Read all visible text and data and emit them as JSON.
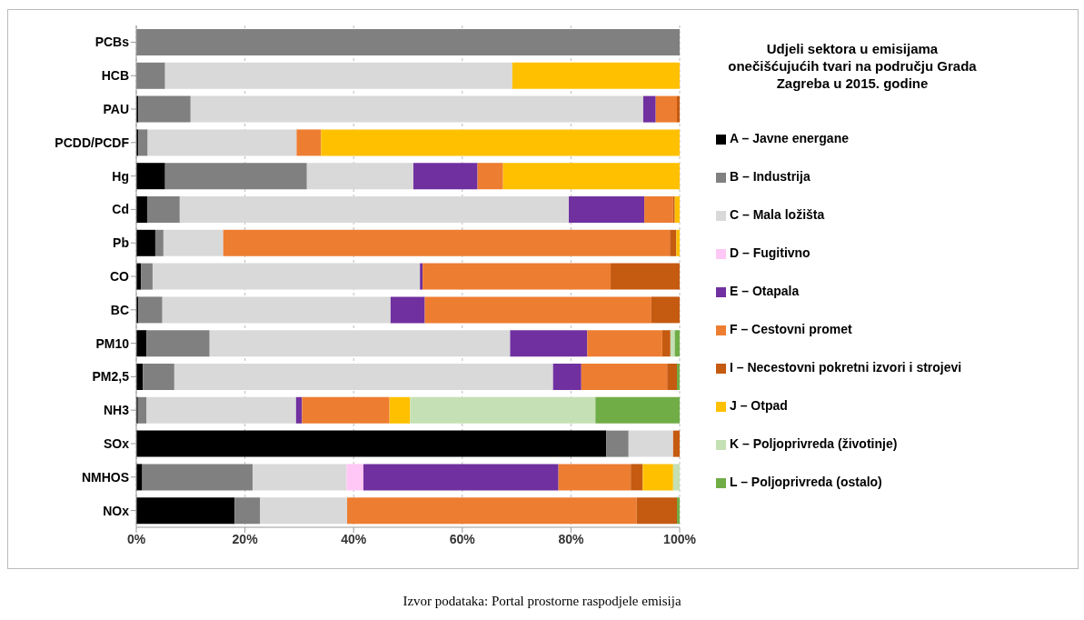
{
  "chart_data": {
    "type": "bar",
    "orientation": "horizontal",
    "stacked": true,
    "title": "Udjeli  sektora u emisijama onečišćujućih tvari na području Grada Zagreba u 2015.  godine",
    "categories": [
      "PCBs",
      "HCB",
      "PAU",
      "PCDD/PCDF",
      "Hg",
      "Cd",
      "Pb",
      "CO",
      "BC",
      "PM10",
      "PM2,5",
      "NH3",
      "SOx",
      "NMHOS",
      "NOx"
    ],
    "series": [
      {
        "name": "A – Javne energane",
        "color": "#000000",
        "values": [
          0,
          0,
          0.4,
          0.4,
          5.3,
          2.0,
          3.5,
          0.9,
          0.4,
          1.9,
          1.2,
          0.3,
          86.5,
          1.1,
          18.1
        ]
      },
      {
        "name": "B – Industrija",
        "color": "#808080",
        "values": [
          100,
          5.3,
          9.6,
          1.7,
          26.1,
          6.0,
          1.5,
          2.1,
          4.4,
          11.6,
          5.8,
          1.6,
          4.1,
          20.3,
          4.7
        ]
      },
      {
        "name": "C – Mala ložišta",
        "color": "#d9d9d9",
        "values": [
          0,
          63.9,
          83.3,
          27.4,
          19.6,
          71.6,
          11.0,
          49.2,
          42.0,
          55.3,
          69.7,
          27.5,
          8.2,
          17.3,
          16.0
        ]
      },
      {
        "name": "D – Fugitivno",
        "color": "#ffc7f5",
        "values": [
          0,
          0,
          0,
          0,
          0,
          0,
          0,
          0,
          0,
          0,
          0,
          0,
          0,
          3.1,
          0
        ]
      },
      {
        "name": "E – Otapala",
        "color": "#7030a0",
        "values": [
          0,
          0,
          2.3,
          0,
          11.8,
          13.9,
          0,
          0.5,
          6.3,
          14.2,
          5.2,
          1.1,
          0,
          35.9,
          0
        ]
      },
      {
        "name": "F – Cestovni promet",
        "color": "#ed7d31",
        "values": [
          0,
          0,
          3.9,
          4.5,
          4.7,
          5.3,
          82.2,
          34.6,
          41.7,
          13.8,
          15.8,
          16.1,
          0,
          13.3,
          53.3
        ]
      },
      {
        "name": "I – Necestovni pokretni izvori i strojevi",
        "color": "#c55a11",
        "values": [
          0,
          0,
          0.5,
          0,
          0,
          0.3,
          1.2,
          12.7,
          5.2,
          1.5,
          1.8,
          0,
          1.2,
          2.2,
          7.4
        ]
      },
      {
        "name": "J – Otpad",
        "color": "#ffc000",
        "values": [
          0,
          30.8,
          0,
          66.0,
          32.5,
          0.9,
          0.6,
          0,
          0,
          0,
          0,
          3.8,
          0,
          5.6,
          0
        ]
      },
      {
        "name": "K – Poljoprivreda (životinje)",
        "color": "#c5e0b4",
        "values": [
          0,
          0,
          0,
          0,
          0,
          0,
          0,
          0,
          0,
          0.8,
          0,
          34.1,
          0,
          1.2,
          0
        ]
      },
      {
        "name": "L – Poljoprivreda (ostalo)",
        "color": "#70ad47",
        "values": [
          0,
          0,
          0,
          0,
          0,
          0,
          0,
          0,
          0,
          0.9,
          0.5,
          15.5,
          0,
          0,
          0.5
        ]
      }
    ],
    "xlim": [
      0,
      100
    ],
    "xticks": [
      {
        "value": 0,
        "label": "0%"
      },
      {
        "value": 20,
        "label": "20%"
      },
      {
        "value": 40,
        "label": "40%"
      },
      {
        "value": 60,
        "label": "60%"
      },
      {
        "value": 80,
        "label": "80%"
      },
      {
        "value": 100,
        "label": "100%"
      }
    ],
    "grid": "x",
    "legend": "right",
    "annotations": [
      "Izvor podataka: Portal prostorne raspodjele emisija"
    ]
  }
}
